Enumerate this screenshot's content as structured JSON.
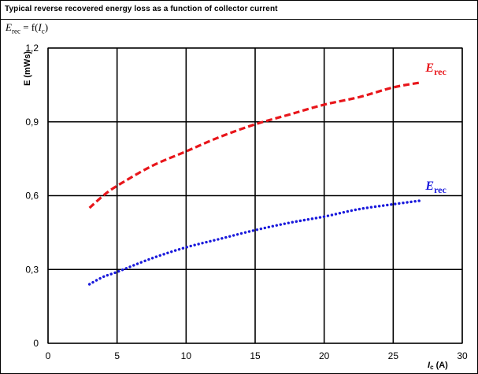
{
  "header": {
    "title": "Typical reverse recovered energy loss as a function of collector current",
    "subtitle_var": "E",
    "subtitle_sub": "rec",
    "subtitle_mid": " = f(",
    "subtitle_arg": "I",
    "subtitle_argsub": "c",
    "subtitle_end": ")"
  },
  "chart_data": {
    "type": "line",
    "title": "Typical reverse recovered energy loss as a function of collector current",
    "xlabel": "I_c (A)",
    "xlabel_main": "I",
    "xlabel_sub": "c",
    "xlabel_unit": "(A)",
    "ylabel": "E (mWs)",
    "xlim": [
      0,
      30
    ],
    "ylim": [
      0,
      1.2
    ],
    "xticks": [
      0,
      5,
      10,
      15,
      20,
      25,
      30
    ],
    "xtick_labels": [
      "0",
      "5",
      "10",
      "15",
      "20",
      "25",
      "30"
    ],
    "yticks": [
      0,
      0.3,
      0.6,
      0.9,
      1.2
    ],
    "ytick_labels": [
      "0",
      "0,3",
      "0,6",
      "0,9",
      "1,2"
    ],
    "grid": true,
    "series": [
      {
        "name": "E_rec",
        "label_main": "E",
        "label_sub": "rec",
        "color": "#e8161b",
        "style": "dashed",
        "x": [
          3,
          4,
          5,
          7.5,
          10,
          12.5,
          15,
          17.5,
          20,
          22.5,
          25,
          27
        ],
        "y": [
          0.55,
          0.6,
          0.64,
          0.72,
          0.78,
          0.84,
          0.89,
          0.93,
          0.97,
          1.0,
          1.04,
          1.06
        ]
      },
      {
        "name": "E_rec",
        "label_main": "E",
        "label_sub": "rec",
        "color": "#1a1adc",
        "style": "dotted",
        "x": [
          3,
          4,
          5,
          7.5,
          10,
          12.5,
          15,
          17.5,
          20,
          22.5,
          25,
          27
        ],
        "y": [
          0.24,
          0.27,
          0.29,
          0.345,
          0.39,
          0.425,
          0.46,
          0.49,
          0.515,
          0.545,
          0.565,
          0.58
        ]
      }
    ]
  }
}
